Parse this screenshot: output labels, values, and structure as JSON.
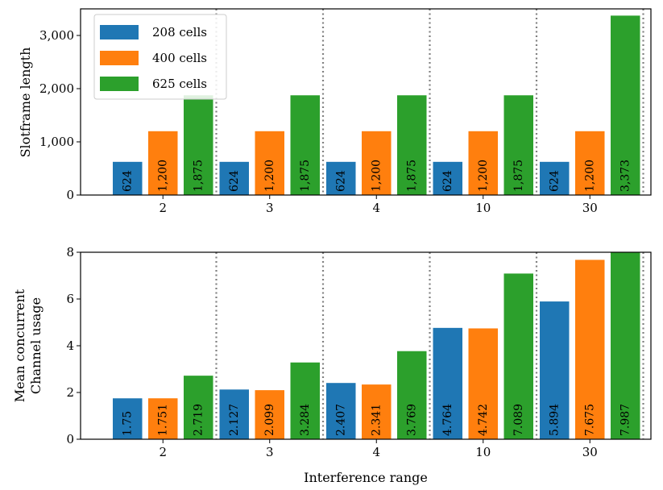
{
  "chart_data": [
    {
      "type": "bar",
      "ylabel": "Slotframe length",
      "xlabel": "",
      "categories": [
        "2",
        "3",
        "4",
        "10",
        "30"
      ],
      "series": [
        {
          "name": "208 cells",
          "color": "#1f77b4",
          "values": [
            624,
            624,
            624,
            624,
            624
          ],
          "labels": [
            "624",
            "624",
            "624",
            "624",
            "624"
          ]
        },
        {
          "name": "400 cells",
          "color": "#ff7f0e",
          "values": [
            1200,
            1200,
            1200,
            1200,
            1200
          ],
          "labels": [
            "1,200",
            "1,200",
            "1,200",
            "1,200",
            "1,200"
          ]
        },
        {
          "name": "625 cells",
          "color": "#2ca02c",
          "values": [
            1875,
            1875,
            1875,
            1875,
            3373
          ],
          "labels": [
            "1,875",
            "1,875",
            "1,875",
            "1,875",
            "3,373"
          ]
        }
      ],
      "ylim": [
        0,
        3500
      ],
      "yticks": [
        0,
        1000,
        2000,
        3000
      ],
      "ytick_labels": [
        "0",
        "1,000",
        "2,000",
        "3,000"
      ],
      "legend": "top-left",
      "grid": false,
      "separators": "dotted vertical lines between groups"
    },
    {
      "type": "bar",
      "ylabel_lines": [
        "Mean concurrent",
        "Channel usage"
      ],
      "xlabel": "Interference range",
      "categories": [
        "2",
        "3",
        "4",
        "10",
        "30"
      ],
      "series": [
        {
          "name": "208 cells",
          "color": "#1f77b4",
          "values": [
            1.75,
            2.127,
            2.407,
            4.764,
            5.894
          ],
          "labels": [
            "1.75",
            "2.127",
            "2.407",
            "4.764",
            "5.894"
          ]
        },
        {
          "name": "400 cells",
          "color": "#ff7f0e",
          "values": [
            1.751,
            2.099,
            2.341,
            4.742,
            7.675
          ],
          "labels": [
            "1.751",
            "2.099",
            "2.341",
            "4.742",
            "7.675"
          ]
        },
        {
          "name": "625 cells",
          "color": "#2ca02c",
          "values": [
            2.719,
            3.284,
            3.769,
            7.089,
            7.987
          ],
          "labels": [
            "2.719",
            "3.284",
            "3.769",
            "7.089",
            "7.987"
          ]
        }
      ],
      "ylim": [
        0,
        8
      ],
      "yticks": [
        0,
        2,
        4,
        6,
        8
      ],
      "ytick_labels": [
        "0",
        "2",
        "4",
        "6",
        "8"
      ],
      "grid": false,
      "separators": "dotted vertical lines between groups"
    }
  ]
}
